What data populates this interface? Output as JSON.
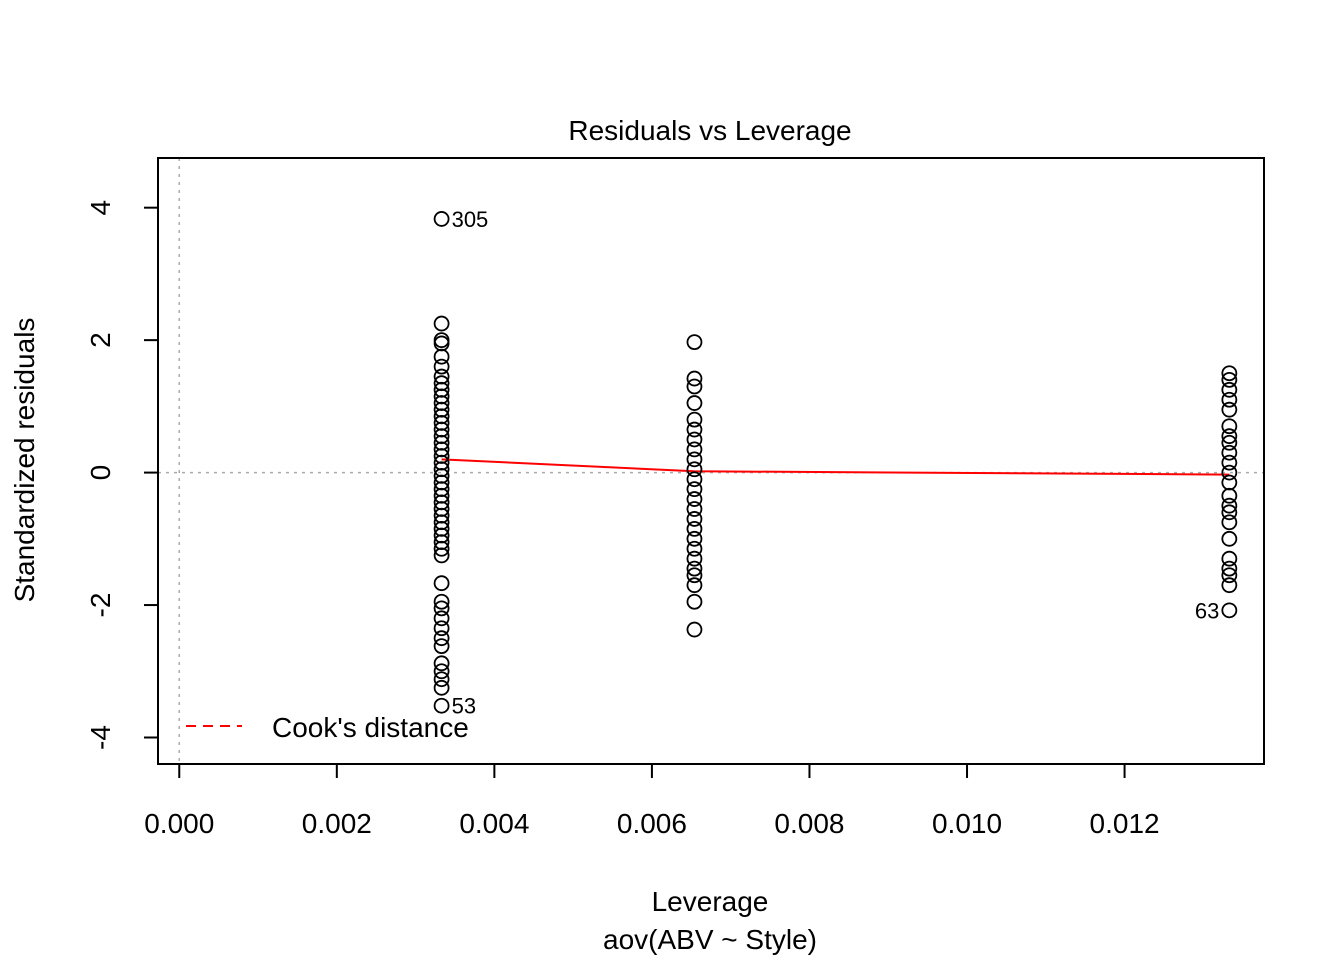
{
  "chart_data": {
    "type": "scatter",
    "title": "Residuals vs Leverage",
    "xlabel": "Leverage",
    "xlabel_sub": "aov(ABV ~ Style)",
    "ylabel": "Standardized residuals",
    "xlim": [
      -0.00027,
      0.01377
    ],
    "ylim": [
      -4.4,
      4.75
    ],
    "x_ticks": [
      0.0,
      0.002,
      0.004,
      0.006,
      0.008,
      0.01,
      0.012
    ],
    "x_tick_labels": [
      "0.000",
      "0.002",
      "0.004",
      "0.006",
      "0.008",
      "0.010",
      "0.012"
    ],
    "y_ticks": [
      -4,
      -2,
      0,
      2,
      4
    ],
    "y_tick_labels": [
      "-4",
      "-2",
      "0",
      "2",
      "4"
    ],
    "grid": false,
    "reference_lines": {
      "x": 0,
      "y": 0,
      "color": "#aaaaaa",
      "style": "dotted"
    },
    "legend": {
      "position": "bottom-left",
      "entries": [
        {
          "label": "Cook's distance",
          "color": "#ff0000",
          "style": "dashed"
        }
      ]
    },
    "series": [
      {
        "x": 0.00333,
        "values": [
          3.83,
          2.25,
          2.0,
          1.95,
          1.75,
          1.6,
          1.45,
          1.35,
          1.25,
          1.15,
          1.05,
          0.95,
          0.85,
          0.75,
          0.65,
          0.55,
          0.45,
          0.35,
          0.25,
          0.15,
          0.05,
          -0.05,
          -0.15,
          -0.25,
          -0.35,
          -0.45,
          -0.55,
          -0.65,
          -0.75,
          -0.85,
          -0.95,
          -1.05,
          -1.15,
          -1.25,
          -1.67,
          -1.95,
          -2.05,
          -2.2,
          -2.35,
          -2.5,
          -2.62,
          -2.88,
          -3.0,
          -3.12,
          -3.25,
          -3.52
        ]
      },
      {
        "x": 0.00654,
        "values": [
          1.97,
          1.42,
          1.3,
          1.05,
          0.8,
          0.65,
          0.5,
          0.35,
          0.2,
          0.05,
          -0.1,
          -0.25,
          -0.4,
          -0.55,
          -0.7,
          -0.85,
          -1.0,
          -1.15,
          -1.3,
          -1.45,
          -1.55,
          -1.7,
          -1.95,
          -2.37
        ]
      },
      {
        "x": 0.01333,
        "values": [
          1.5,
          1.4,
          1.25,
          1.1,
          0.95,
          0.7,
          0.55,
          0.45,
          0.3,
          0.15,
          0.0,
          -0.15,
          -0.35,
          -0.5,
          -0.6,
          -0.75,
          -1.0,
          -1.3,
          -1.45,
          -1.55,
          -1.7,
          -2.08
        ]
      }
    ],
    "labeled_points": [
      {
        "label": "305",
        "x": 0.00333,
        "y": 3.83,
        "side": "right"
      },
      {
        "label": "53",
        "x": 0.00333,
        "y": -3.52,
        "side": "right"
      },
      {
        "label": "63",
        "x": 0.01333,
        "y": -2.08,
        "side": "left"
      }
    ],
    "smooth_line": {
      "color": "#ff0000",
      "x": [
        0.00333,
        0.00654,
        0.01333
      ],
      "y": [
        0.2,
        0.02,
        -0.03
      ]
    }
  }
}
